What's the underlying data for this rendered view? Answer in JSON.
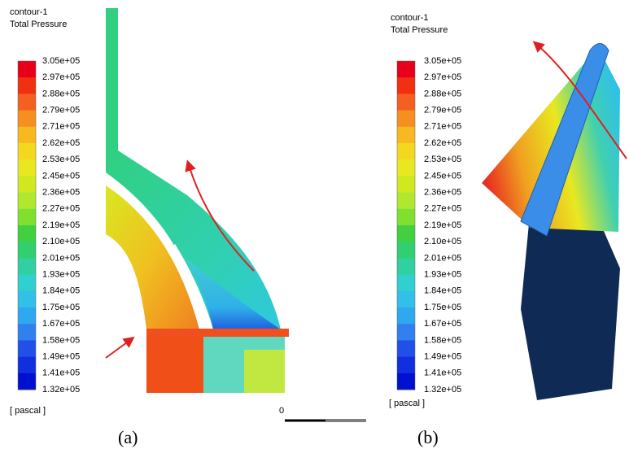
{
  "panels": [
    {
      "title": "contour-1",
      "subtitle": "Total Pressure",
      "colorbar_labels": [
        "3.05e+05",
        "2.97e+05",
        "2.88e+05",
        "2.79e+05",
        "2.71e+05",
        "2.62e+05",
        "2.53e+05",
        "2.45e+05",
        "2.36e+05",
        "2.27e+05",
        "2.19e+05",
        "2.10e+05",
        "2.01e+05",
        "1.93e+05",
        "1.84e+05",
        "1.75e+05",
        "1.67e+05",
        "1.58e+05",
        "1.49e+05",
        "1.41e+05",
        "1.32e+05"
      ],
      "unit": "[ pascal ]",
      "caption": "(a)"
    },
    {
      "title": "contour-1",
      "subtitle": "Total Pressure",
      "colorbar_labels": [
        "3.05e+05",
        "2.97e+05",
        "2.88e+05",
        "2.79e+05",
        "2.71e+05",
        "2.62e+05",
        "2.53e+05",
        "2.45e+05",
        "2.36e+05",
        "2.27e+05",
        "2.19e+05",
        "2.10e+05",
        "2.01e+05",
        "1.93e+05",
        "1.84e+05",
        "1.75e+05",
        "1.67e+05",
        "1.58e+05",
        "1.49e+05",
        "1.41e+05",
        "1.32e+05"
      ],
      "unit": "[ pascal ]",
      "caption": "(b)"
    }
  ],
  "scale_label": "0"
}
